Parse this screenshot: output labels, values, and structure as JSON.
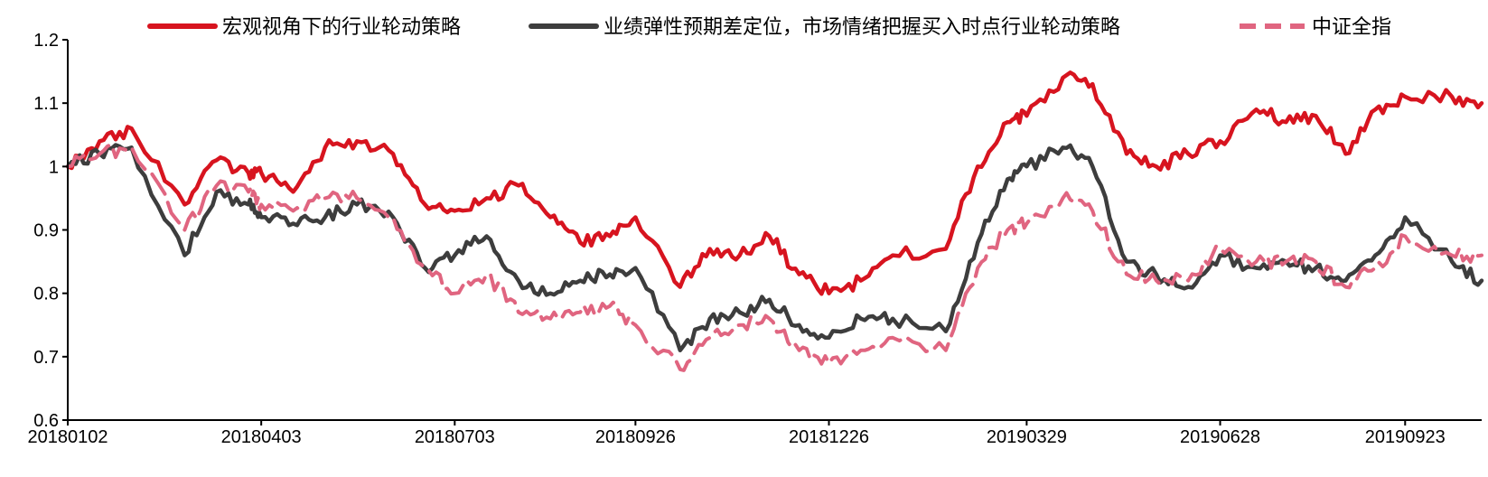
{
  "chart_data": {
    "type": "line",
    "title": "",
    "xlabel": "",
    "ylabel": "",
    "x_ticks": [
      "20180102",
      "20180403",
      "20180703",
      "20180926",
      "20181226",
      "20190329",
      "20190628",
      "20190923"
    ],
    "y_ticks": [
      "0.6",
      "0.7",
      "0.8",
      "0.9",
      "1",
      "1.1",
      "1.2"
    ],
    "ylim": [
      0.6,
      1.2
    ],
    "grid": false,
    "legend_position": "top",
    "x": [
      "20180102",
      "20180117",
      "20180201",
      "20180226",
      "20180313",
      "20180328",
      "20180403",
      "20180418",
      "20180503",
      "20180518",
      "20180604",
      "20180619",
      "20180703",
      "20180718",
      "20180802",
      "20180817",
      "20180831",
      "20180914",
      "20180926",
      "20181017",
      "20181031",
      "20181114",
      "20181128",
      "20181212",
      "20181226",
      "20190110",
      "20190125",
      "20190219",
      "20190306",
      "20190320",
      "20190329",
      "20190415",
      "20190429",
      "20190515",
      "20190529",
      "20190613",
      "20190628",
      "20190715",
      "20190729",
      "20190812",
      "20190826",
      "20190909",
      "20190923",
      "20191015",
      "20191029"
    ],
    "series": [
      {
        "name": "宏观视角下的行业轮动策略",
        "color": "#d7141f",
        "dash": "solid",
        "values": [
          1.0,
          1.04,
          1.06,
          0.94,
          1.01,
          0.99,
          0.99,
          0.96,
          1.03,
          1.04,
          1.02,
          0.94,
          0.93,
          0.95,
          0.97,
          0.92,
          0.88,
          0.89,
          0.92,
          0.81,
          0.87,
          0.86,
          0.89,
          0.83,
          0.8,
          0.82,
          0.86,
          0.87,
          1.0,
          1.07,
          1.08,
          1.14,
          1.13,
          1.02,
          1.0,
          1.02,
          1.04,
          1.09,
          1.07,
          1.08,
          1.02,
          1.09,
          1.11,
          1.11,
          1.1
        ]
      },
      {
        "name": "业绩弹性预期差定位，市场情绪把握买入时点行业轮动策略",
        "color": "#3d3d3d",
        "dash": "solid",
        "values": [
          1.0,
          1.02,
          1.03,
          0.86,
          0.96,
          0.94,
          0.92,
          0.91,
          0.92,
          0.94,
          0.92,
          0.84,
          0.86,
          0.89,
          0.82,
          0.8,
          0.82,
          0.83,
          0.84,
          0.71,
          0.76,
          0.77,
          0.79,
          0.75,
          0.73,
          0.76,
          0.76,
          0.74,
          0.88,
          0.98,
          1.0,
          1.03,
          1.0,
          0.85,
          0.83,
          0.81,
          0.86,
          0.84,
          0.85,
          0.84,
          0.82,
          0.86,
          0.92,
          0.85,
          0.82
        ]
      },
      {
        "name": "中证全指",
        "color": "#e06580",
        "dash": "dashed",
        "values": [
          1.0,
          1.02,
          1.03,
          0.9,
          0.97,
          0.96,
          0.94,
          0.93,
          0.95,
          0.95,
          0.92,
          0.84,
          0.8,
          0.83,
          0.77,
          0.76,
          0.77,
          0.78,
          0.75,
          0.68,
          0.73,
          0.75,
          0.76,
          0.71,
          0.69,
          0.71,
          0.73,
          0.71,
          0.84,
          0.9,
          0.91,
          0.95,
          0.93,
          0.83,
          0.82,
          0.82,
          0.87,
          0.85,
          0.85,
          0.85,
          0.81,
          0.84,
          0.89,
          0.86,
          0.86
        ]
      }
    ]
  }
}
